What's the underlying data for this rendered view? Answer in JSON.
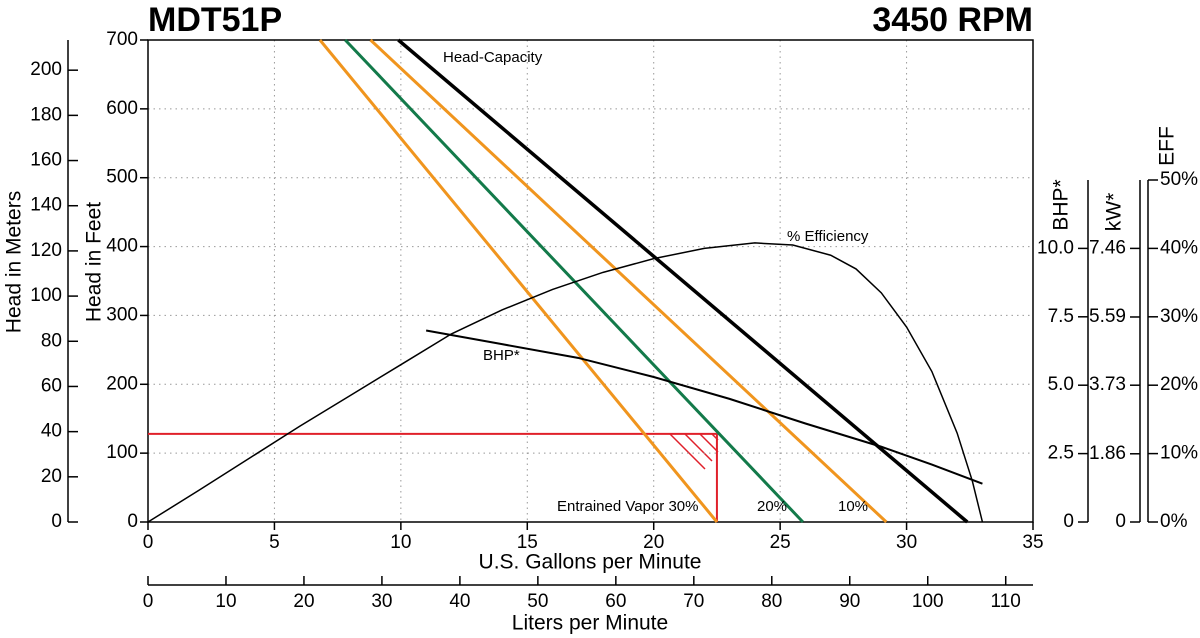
{
  "chart_data": {
    "type": "line",
    "title": "MDT51P",
    "subtitle": "3450 RPM",
    "xlabel": "U.S. Gallons per Minute",
    "xlim": [
      0,
      35
    ],
    "xticks": [
      0,
      5,
      10,
      15,
      20,
      25,
      30,
      35
    ],
    "x2label": "Liters per Minute",
    "x2lim": [
      0,
      113.5
    ],
    "x2ticks": [
      0,
      10,
      20,
      30,
      40,
      50,
      60,
      70,
      80,
      90,
      100,
      110
    ],
    "ylabel": "Head in Feet",
    "ylim": [
      0,
      700
    ],
    "yticks": [
      0,
      100,
      200,
      300,
      400,
      500,
      600,
      700
    ],
    "y2label": "Head in Meters",
    "y2lim": [
      0,
      213.36
    ],
    "y2ticks": [
      0,
      20,
      40,
      60,
      80,
      100,
      120,
      140,
      160,
      180,
      200
    ],
    "y3label": "BHP*",
    "y3lim": [
      0,
      12.5
    ],
    "y3ticks": [
      0,
      2.5,
      {
        "value": 5,
        "label": "5.0"
      },
      7.5,
      {
        "value": 10,
        "label": "10.0"
      }
    ],
    "y4label": "kW*",
    "y4lim": [
      0,
      9.325
    ],
    "y4ticks": [
      0,
      1.86,
      3.73,
      5.59,
      7.46
    ],
    "y5label": "EFF",
    "y5lim": [
      0,
      50
    ],
    "y5ticks": [
      {
        "value": 0,
        "label": "0%"
      },
      {
        "value": 10,
        "label": "10%"
      },
      {
        "value": 20,
        "label": "20%"
      },
      {
        "value": 30,
        "label": "30%"
      },
      {
        "value": 40,
        "label": "40%"
      },
      {
        "value": 50,
        "label": "50%"
      }
    ],
    "grid": true,
    "series": [
      {
        "name": "Head-Capacity",
        "color": "#000000",
        "linewidth": 3.5,
        "axis": "y",
        "x": [
          9.9,
          32.4
        ],
        "values": [
          700,
          0
        ]
      },
      {
        "name": "10%",
        "color": "#f0951e",
        "linewidth": 3,
        "axis": "y",
        "x": [
          8.8,
          29.2
        ],
        "values": [
          700,
          0
        ]
      },
      {
        "name": "20%",
        "color": "#137a4a",
        "linewidth": 3,
        "axis": "y",
        "x": [
          7.8,
          25.9
        ],
        "values": [
          700,
          0
        ]
      },
      {
        "name": "Entrained Vapor 30%",
        "color": "#f0951e",
        "linewidth": 3,
        "axis": "y",
        "x": [
          6.8,
          22.5
        ],
        "values": [
          700,
          0
        ]
      },
      {
        "name": "% Efficiency",
        "color": "#000000",
        "linewidth": 1.5,
        "axis": "y5",
        "x": [
          0,
          2,
          4,
          6,
          8,
          10,
          12,
          14,
          16,
          18,
          20,
          22,
          24,
          25.5,
          27,
          28,
          29,
          30,
          31,
          32,
          32.6,
          33
        ],
        "values": [
          0,
          4.6,
          9.3,
          14,
          18.5,
          23,
          27.5,
          31,
          34,
          36.5,
          38.5,
          40,
          40.8,
          40.5,
          39,
          37,
          33.5,
          28.5,
          22,
          13,
          6,
          0
        ]
      },
      {
        "name": "BHP*",
        "color": "#000000",
        "linewidth": 2,
        "axis": "y3",
        "x": [
          11,
          14,
          17,
          20,
          23,
          26,
          29,
          31,
          33
        ],
        "values": [
          7.0,
          6.5,
          6.0,
          5.3,
          4.5,
          3.6,
          2.75,
          2.1,
          1.4
        ]
      }
    ],
    "operating_point": {
      "x": 22.5,
      "y": 128,
      "color": "#e0202a"
    }
  }
}
